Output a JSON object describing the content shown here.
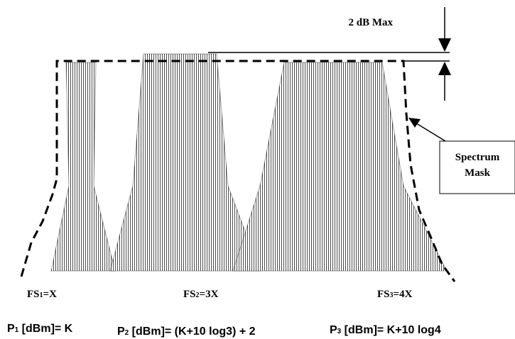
{
  "annotation": {
    "max_label": "2 dB Max",
    "mask_box_line1": "Spectrum",
    "mask_box_line2": "Mask"
  },
  "frequencies": [
    {
      "name": "FS",
      "sub": "1",
      "rest": "=X"
    },
    {
      "name": "FS",
      "sub": "2",
      "rest": "=3X"
    },
    {
      "name": "FS",
      "sub": "3",
      "rest": "=4X"
    }
  ],
  "powers": [
    {
      "name": "P",
      "sub": "1",
      "rest": " [dBm]= K"
    },
    {
      "name": "P",
      "sub": "2",
      "rest": " [dBm]= (K+10 log3) + 2"
    },
    {
      "name": "P",
      "sub": "3",
      "rest": " [dBm]= K+10 log4"
    }
  ],
  "colors": {
    "line": "#000000",
    "fill_background": "#ffffff"
  }
}
